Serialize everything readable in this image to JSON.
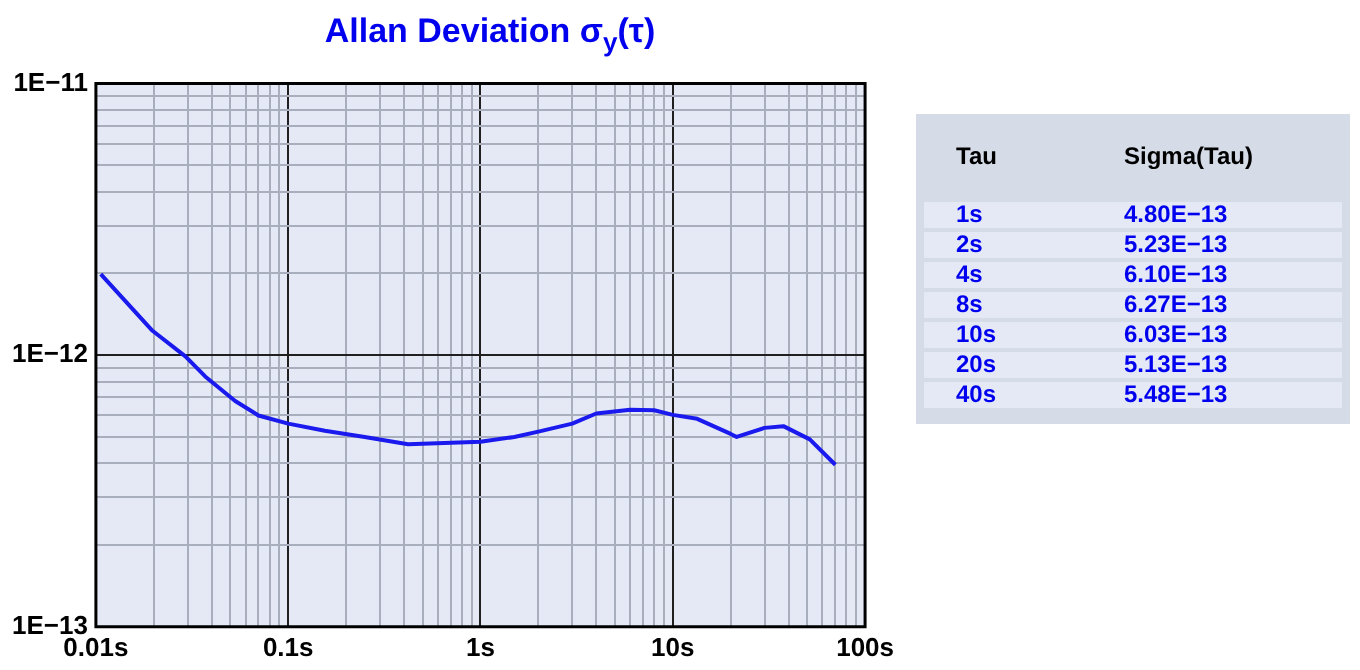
{
  "chart_data": {
    "type": "line",
    "title": "Allan Deviation σ$_{y}$(τ)",
    "log": "xy",
    "grid": true,
    "legend": false,
    "marker": "none",
    "xlim": [
      0.01,
      100
    ],
    "ylim": [
      1e-13,
      1e-11
    ],
    "xticks": [
      {
        "value": 0.01,
        "label": "0.01s"
      },
      {
        "value": 0.02,
        "label": null
      },
      {
        "value": 0.03,
        "label": null
      },
      {
        "value": 0.04,
        "label": null
      },
      {
        "value": 0.05,
        "label": null
      },
      {
        "value": 0.06,
        "label": null
      },
      {
        "value": 0.07,
        "label": null
      },
      {
        "value": 0.08,
        "label": null
      },
      {
        "value": 0.09,
        "label": null
      },
      {
        "value": 0.1,
        "label": "0.1s"
      },
      {
        "value": 0.2,
        "label": null
      },
      {
        "value": 0.3,
        "label": null
      },
      {
        "value": 0.4,
        "label": null
      },
      {
        "value": 0.5,
        "label": null
      },
      {
        "value": 0.6,
        "label": null
      },
      {
        "value": 0.7,
        "label": null
      },
      {
        "value": 0.8,
        "label": null
      },
      {
        "value": 0.9,
        "label": null
      },
      {
        "value": 1,
        "label": "1s"
      },
      {
        "value": 2,
        "label": null
      },
      {
        "value": 3,
        "label": null
      },
      {
        "value": 4,
        "label": null
      },
      {
        "value": 5,
        "label": null
      },
      {
        "value": 6,
        "label": null
      },
      {
        "value": 7,
        "label": null
      },
      {
        "value": 8,
        "label": null
      },
      {
        "value": 9,
        "label": null
      },
      {
        "value": 10,
        "label": "10s"
      },
      {
        "value": 20,
        "label": null
      },
      {
        "value": 30,
        "label": null
      },
      {
        "value": 40,
        "label": null
      },
      {
        "value": 50,
        "label": null
      },
      {
        "value": 60,
        "label": null
      },
      {
        "value": 70,
        "label": null
      },
      {
        "value": 80,
        "label": null
      },
      {
        "value": 90,
        "label": null
      },
      {
        "value": 100,
        "label": "100s"
      }
    ],
    "yticks": [
      {
        "value": 1e-13,
        "label": "1E−13"
      },
      {
        "value": 2e-13,
        "label": null
      },
      {
        "value": 3e-13,
        "label": null
      },
      {
        "value": 4e-13,
        "label": null
      },
      {
        "value": 5e-13,
        "label": null
      },
      {
        "value": 6e-13,
        "label": null
      },
      {
        "value": 7e-13,
        "label": null
      },
      {
        "value": 8e-13,
        "label": null
      },
      {
        "value": 9e-13,
        "label": null
      },
      {
        "value": 1e-12,
        "label": "1E−12"
      },
      {
        "value": 2e-12,
        "label": null
      },
      {
        "value": 3e-12,
        "label": null
      },
      {
        "value": 4e-12,
        "label": null
      },
      {
        "value": 5e-12,
        "label": null
      },
      {
        "value": 6e-12,
        "label": null
      },
      {
        "value": 7e-12,
        "label": null
      },
      {
        "value": 8e-12,
        "label": null
      },
      {
        "value": 9e-12,
        "label": null
      },
      {
        "value": 1e-11,
        "label": "1E−11"
      }
    ],
    "series": [
      {
        "color": "#1a1aee",
        "x": [
          0.0106,
          0.0197,
          0.0292,
          0.037,
          0.053,
          0.07,
          0.1,
          0.155,
          0.25,
          0.42,
          1,
          1.5,
          2,
          3,
          4,
          6,
          8,
          10,
          13.4,
          20,
          21.5,
          30,
          37.6,
          51.6,
          70
        ],
        "values": [
          1.99e-12,
          1.23e-12,
          9.9e-13,
          8.35e-13,
          6.78e-13,
          6e-13,
          5.6e-13,
          5.27e-13,
          5e-13,
          4.7e-13,
          4.8e-13,
          5e-13,
          5.23e-13,
          5.6e-13,
          6.1e-13,
          6.3e-13,
          6.27e-13,
          6.03e-13,
          5.83e-13,
          5.13e-13,
          5e-13,
          5.4e-13,
          5.48e-13,
          4.9e-13,
          3.95e-13
        ]
      }
    ],
    "annotations": [
      "Tau",
      "Sigma(Tau)",
      "1s",
      "4.80E−13",
      "2s",
      "5.23E−13",
      "4s",
      "6.10E−13",
      "8s",
      "6.27E−13",
      "10s",
      "6.03E−13",
      "20s",
      "5.13E−13",
      "40s",
      "5.48E−13"
    ]
  }
}
